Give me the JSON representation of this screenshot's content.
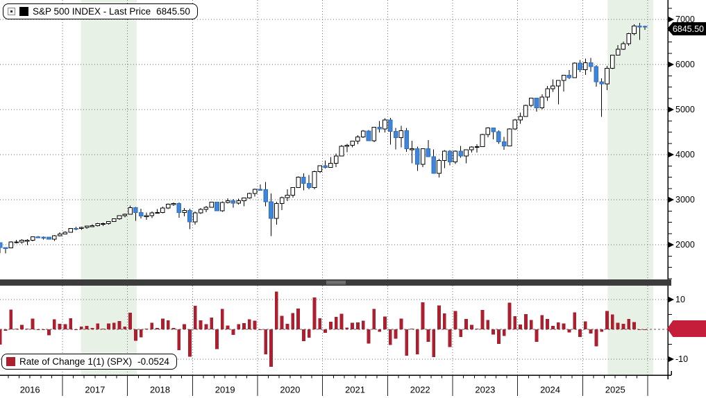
{
  "main_legend": {
    "series_label": "S&P 500 INDEX - Last Price",
    "value": "6845.50",
    "swatch_color": "#000000"
  },
  "roc_legend": {
    "series_label": "Rate of Change 1(1) (SPX)",
    "value": "-0.0524",
    "swatch_color": "#ab1f2f"
  },
  "price_axis": {
    "ticks": [
      7000,
      6000,
      5000,
      4000,
      3000,
      2000
    ],
    "last_price_label": "6845.50"
  },
  "roc_axis": {
    "major_ticks": [
      10,
      -10
    ],
    "minor_ticks": [
      5,
      -5
    ]
  },
  "x_axis": {
    "years": [
      "2016",
      "2017",
      "2018",
      "2019",
      "2020",
      "2021",
      "2022",
      "2023",
      "2024",
      "2025"
    ]
  },
  "colors": {
    "up_fill": "#ffffff",
    "up_stroke": "#000000",
    "down_fill": "#3f86d8",
    "down_stroke": "#2e6fc4",
    "wick": "#000000",
    "roc_bar": "#ab1f2f",
    "roc_marker": "#c41e3a",
    "tag_bg": "#000000",
    "grid": "#6e6e6e",
    "band": "#e8f1e5",
    "axis": "#000000",
    "divider": "#3c3c3c"
  },
  "highlight_bands": [
    {
      "start_month_index": 15.4,
      "end_month_index": 25.7,
      "color": "#e8f1e5"
    },
    {
      "start_month_index": 112.6,
      "end_month_index": 121.0,
      "color": "#e8f1e5"
    }
  ],
  "chart_data": {
    "type": "candlestick+bar",
    "x_years": [
      "2016",
      "2017",
      "2018",
      "2019",
      "2020",
      "2021",
      "2022",
      "2023",
      "2024",
      "2025"
    ],
    "months_start": "2016-01",
    "panels": [
      {
        "type": "candlestick",
        "name": "S&P 500 INDEX - Last Price",
        "last_price": 6845.5,
        "ylim": [
          1250,
          7430
        ],
        "yticks": [
          2000,
          3000,
          4000,
          5000,
          6000,
          7000
        ],
        "open_first": 2044,
        "close": [
          1940,
          1932,
          2060,
          2065,
          2097,
          2099,
          2174,
          2171,
          2168,
          2126,
          2199,
          2239,
          2279,
          2364,
          2363,
          2384,
          2412,
          2423,
          2470,
          2472,
          2519,
          2575,
          2648,
          2674,
          2824,
          2714,
          2641,
          2648,
          2705,
          2718,
          2816,
          2902,
          2914,
          2712,
          2760,
          2507,
          2704,
          2784,
          2834,
          2946,
          2752,
          2942,
          2980,
          2926,
          2977,
          3038,
          3141,
          3231,
          3226,
          2954,
          2585,
          2912,
          3044,
          3100,
          3271,
          3500,
          3363,
          3270,
          3622,
          3756,
          3714,
          3811,
          3973,
          4181,
          4204,
          4298,
          4395,
          4523,
          4308,
          4605,
          4567,
          4766,
          4516,
          4374,
          4530,
          4132,
          4132,
          3785,
          4130,
          3955,
          3586,
          3872,
          4080,
          3840,
          4077,
          3970,
          4109,
          4169,
          4180,
          4450,
          4589,
          4508,
          4288,
          4194,
          4568,
          4770,
          4846,
          5096,
          5254,
          5036,
          5278,
          5460,
          5522,
          5648,
          5762,
          5705,
          6032,
          5882,
          6041,
          5955,
          5612,
          5569,
          5912,
          6205,
          6339,
          6460,
          6688,
          6852,
          6849,
          6845.5
        ],
        "high": [
          2038,
          1947,
          2075,
          2111,
          2120,
          2120,
          2177,
          2194,
          2188,
          2180,
          2214,
          2278,
          2301,
          2371,
          2401,
          2399,
          2418,
          2454,
          2484,
          2491,
          2523,
          2583,
          2657,
          2695,
          2873,
          2835,
          2802,
          2717,
          2742,
          2791,
          2848,
          2916,
          2941,
          2940,
          2815,
          2800,
          2739,
          2813,
          2860,
          2949,
          2954,
          2964,
          3028,
          3014,
          3022,
          3050,
          3154,
          3248,
          3338,
          3393,
          3136,
          2955,
          3068,
          3233,
          3280,
          3514,
          3588,
          3550,
          3645,
          3760,
          3870,
          3950,
          4020,
          4218,
          4238,
          4302,
          4430,
          4546,
          4546,
          4608,
          4744,
          4808,
          4818,
          4595,
          4637,
          4593,
          4307,
          4178,
          4140,
          4325,
          4119,
          3905,
          4100,
          4101,
          4094,
          4195,
          4110,
          4186,
          4231,
          4458,
          4607,
          4600,
          4541,
          4393,
          4587,
          4793,
          4931,
          5111,
          5264,
          5265,
          5341,
          5524,
          5670,
          5652,
          5767,
          5878,
          6044,
          6100,
          6128,
          6147,
          5986,
          5695,
          5968,
          6216,
          6428,
          6508,
          6700,
          6895,
          6920,
          6861
        ],
        "low": [
          1812,
          1810,
          1930,
          2034,
          2026,
          1992,
          2074,
          2147,
          2119,
          2114,
          2084,
          2187,
          2234,
          2267,
          2322,
          2329,
          2353,
          2406,
          2408,
          2417,
          2447,
          2520,
          2557,
          2606,
          2674,
          2533,
          2586,
          2554,
          2595,
          2692,
          2699,
          2796,
          2865,
          2603,
          2631,
          2347,
          2444,
          2682,
          2722,
          2848,
          2751,
          2729,
          2914,
          2822,
          2892,
          2856,
          3024,
          3070,
          3214,
          2855,
          2192,
          2448,
          2766,
          2966,
          3048,
          3271,
          3209,
          3234,
          3234,
          3596,
          3694,
          3714,
          3723,
          3993,
          4057,
          4164,
          4233,
          4368,
          4306,
          4279,
          4495,
          4495,
          4222,
          4115,
          4158,
          4063,
          3810,
          3637,
          3721,
          3954,
          3584,
          3491,
          3698,
          3764,
          3794,
          3928,
          3809,
          4049,
          4048,
          4172,
          4385,
          4336,
          4238,
          4104,
          4197,
          4546,
          4682,
          4845,
          5057,
          4954,
          5011,
          5191,
          5390,
          5119,
          5402,
          5674,
          5697,
          5832,
          5773,
          5838,
          5504,
          4835,
          5433,
          5903,
          6201,
          6324,
          6415,
          6650,
          6550,
          6772
        ]
      },
      {
        "type": "bar",
        "name": "Rate of Change 1(1) (SPX)",
        "last_value": -0.0524,
        "ylim": [
          -14.6,
          14.6
        ],
        "yticks": [
          -10,
          10
        ],
        "values": [
          -5.07,
          -0.41,
          6.6,
          0.27,
          1.53,
          0.09,
          3.56,
          -0.12,
          -0.12,
          -1.94,
          3.42,
          1.82,
          1.79,
          3.72,
          -0.04,
          0.91,
          1.16,
          0.48,
          1.93,
          0.05,
          1.93,
          2.22,
          2.81,
          0.98,
          5.62,
          -3.89,
          -2.69,
          0.27,
          2.16,
          0.48,
          3.6,
          3.03,
          0.43,
          -6.94,
          1.79,
          -9.18,
          7.87,
          2.97,
          1.79,
          3.93,
          -6.58,
          6.89,
          1.31,
          -1.81,
          1.72,
          2.04,
          3.4,
          2.86,
          -0.16,
          -8.41,
          -12.51,
          12.68,
          4.53,
          1.84,
          5.51,
          7.01,
          -3.92,
          -2.77,
          10.75,
          3.71,
          -1.11,
          2.61,
          4.24,
          5.24,
          0.55,
          2.22,
          2.27,
          2.9,
          -4.76,
          6.91,
          -0.83,
          4.36,
          -5.26,
          -3.14,
          3.58,
          -8.8,
          0.01,
          -8.39,
          9.11,
          -4.24,
          -9.34,
          7.99,
          5.38,
          -5.9,
          6.18,
          -2.61,
          3.51,
          1.46,
          0.25,
          6.47,
          3.11,
          -1.77,
          -4.87,
          -2.2,
          8.92,
          4.42,
          1.59,
          5.17,
          3.1,
          -4.16,
          4.8,
          3.47,
          1.13,
          2.28,
          2.02,
          -0.99,
          5.73,
          -2.5,
          2.7,
          -1.42,
          -5.75,
          -0.76,
          6.15,
          4.96,
          2.17,
          1.91,
          3.53,
          2.45,
          -0.04,
          -0.05
        ]
      }
    ]
  }
}
